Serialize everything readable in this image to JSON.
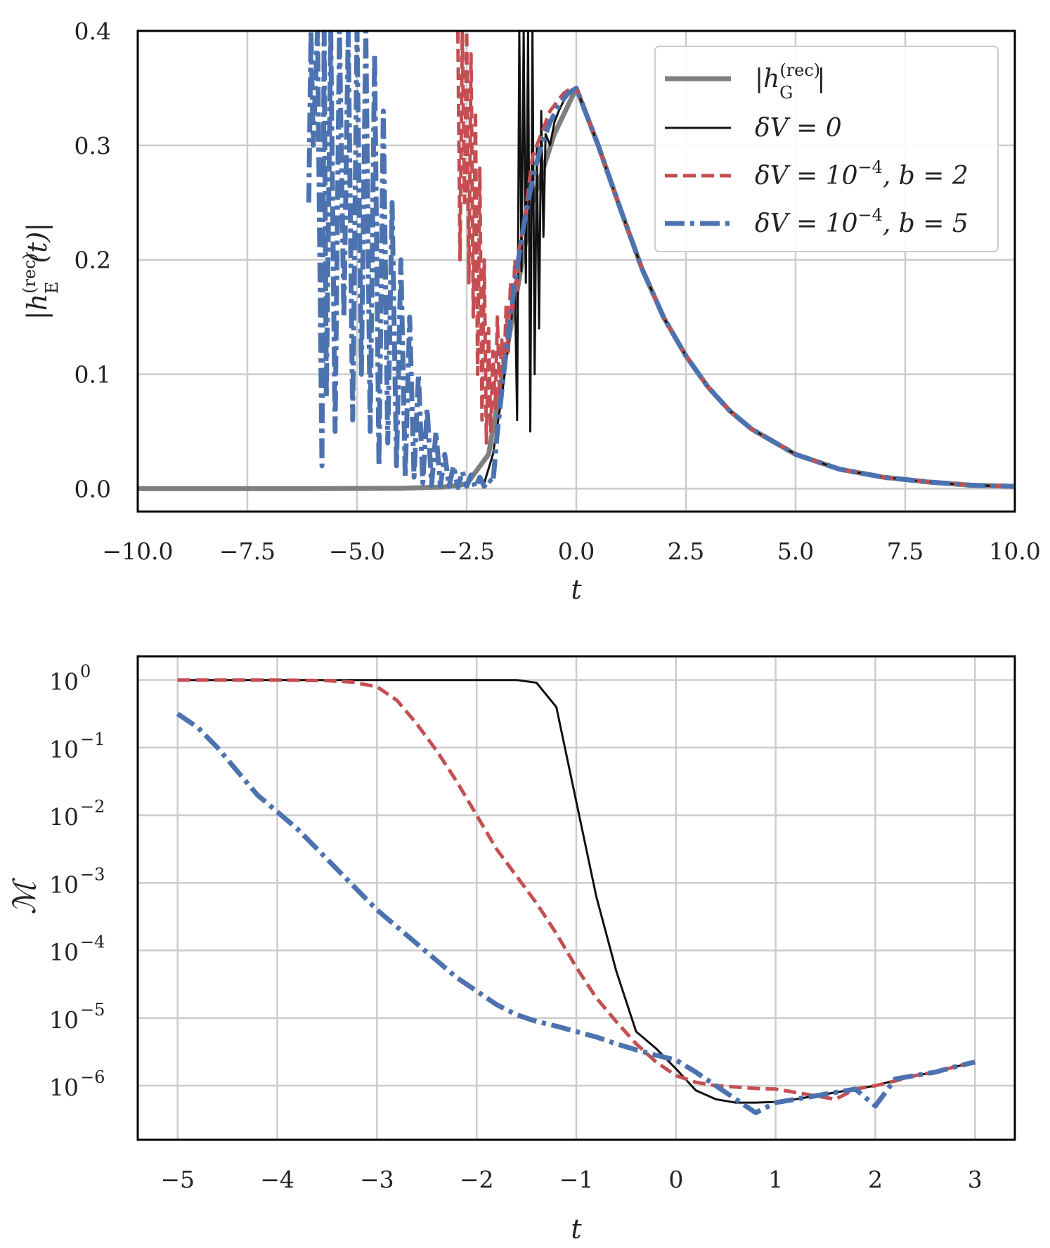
{
  "colors": {
    "gray": "#7f7f7f",
    "black": "#111111",
    "red": "#c44e52",
    "blue": "#4c72b0",
    "grid": "#cccccc",
    "frame": "#000000"
  },
  "chart_data": [
    {
      "type": "line",
      "xlabel": "t",
      "ylabel_parts": {
        "pre": "|h",
        "sup": "(rec)",
        "sub": "E",
        "post": "(t)|"
      },
      "xlim": [
        -10,
        10
      ],
      "ylim": [
        -0.02,
        0.4
      ],
      "xticks": [
        -10,
        -7.5,
        -5,
        -2.5,
        0,
        2.5,
        5,
        7.5,
        10
      ],
      "xtick_labels": [
        "−10.0",
        "−7.5",
        "−5.0",
        "−2.5",
        "0.0",
        "2.5",
        "5.0",
        "7.5",
        "10.0"
      ],
      "yticks": [
        0,
        0.1,
        0.2,
        0.3,
        0.4
      ],
      "ytick_labels": [
        "0.0",
        "0.1",
        "0.2",
        "0.3",
        "0.4"
      ],
      "legend": {
        "position": "top-right",
        "entries": [
          {
            "pre": "|h",
            "sup": "(rec)",
            "sub": "G",
            "post": "|",
            "style": "gray"
          },
          {
            "text": "δV = 0",
            "style": "black"
          },
          {
            "pre": "δV = 10",
            "sup": "−4",
            "post": ", b = 2",
            "style": "red"
          },
          {
            "pre": "δV = 10",
            "sup": "−4",
            "post": ", b = 5",
            "style": "blue"
          }
        ]
      },
      "series": [
        {
          "name": "|h_G^(rec)|",
          "style": "gray",
          "x": [
            -10,
            -8,
            -6,
            -4,
            -3,
            -2.5,
            -2,
            -1.5,
            -1,
            -0.5,
            0,
            0.5,
            1,
            1.5,
            2,
            2.5,
            3,
            3.5,
            4,
            5,
            6,
            7,
            8,
            9,
            10
          ],
          "y": [
            0,
            0,
            0,
            0.0003,
            0.0015,
            0.004,
            0.03,
            0.14,
            0.25,
            0.31,
            0.35,
            0.3,
            0.245,
            0.192,
            0.149,
            0.116,
            0.089,
            0.068,
            0.052,
            0.03,
            0.017,
            0.01,
            0.006,
            0.003,
            0.002
          ]
        },
        {
          "name": "δV = 0",
          "style": "black",
          "x": [
            -2.1,
            -1.9,
            -1.7,
            -1.5,
            -1.4,
            -1.35,
            -1.3,
            -1.25,
            -1.2,
            -1.15,
            -1.1,
            -1.05,
            -1.0,
            -0.95,
            -0.9,
            -0.85,
            -0.8,
            -0.75,
            -0.7,
            -0.6,
            -0.5,
            -0.4,
            -0.3,
            -0.2,
            -0.1,
            0,
            0.5,
            1,
            1.5,
            2,
            2.5,
            3,
            3.5,
            4,
            5,
            6,
            7,
            8,
            9,
            10
          ],
          "y": [
            0.005,
            0.03,
            0.08,
            0.14,
            0.18,
            0.06,
            0.4,
            0.19,
            0.4,
            0.18,
            0.4,
            0.05,
            0.4,
            0.1,
            0.3,
            0.14,
            0.33,
            0.22,
            0.31,
            0.3,
            0.32,
            0.33,
            0.338,
            0.345,
            0.349,
            0.35,
            0.3,
            0.245,
            0.192,
            0.149,
            0.116,
            0.089,
            0.068,
            0.052,
            0.03,
            0.017,
            0.01,
            0.006,
            0.003,
            0.002
          ]
        },
        {
          "name": "δV = 10^−4, b = 2",
          "style": "red",
          "x": [
            -2.7,
            -2.65,
            -2.6,
            -2.55,
            -2.5,
            -2.45,
            -2.4,
            -2.35,
            -2.3,
            -2.25,
            -2.2,
            -2.15,
            -2.1,
            -2.05,
            -2.0,
            -1.95,
            -1.9,
            -1.85,
            -1.8,
            -1.75,
            -1.7,
            -1.65,
            -1.6,
            -1.55,
            -1.5,
            -1.45,
            -1.4,
            -1.35,
            -1.3,
            -1.2,
            -1.1,
            -1.0,
            -0.9,
            -0.8,
            -0.7,
            -0.6,
            -0.5,
            -0.4,
            -0.3,
            -0.2,
            -0.1,
            0,
            0.5,
            1,
            1.5,
            2,
            2.5,
            3,
            3.5,
            4,
            5,
            6,
            7,
            8,
            9,
            10
          ],
          "y": [
            0.4,
            0.2,
            0.4,
            0.25,
            0.4,
            0.18,
            0.38,
            0.15,
            0.33,
            0.1,
            0.28,
            0.06,
            0.2,
            0.04,
            0.14,
            0.05,
            0.12,
            0.07,
            0.15,
            0.08,
            0.13,
            0.1,
            0.16,
            0.12,
            0.18,
            0.15,
            0.2,
            0.17,
            0.21,
            0.23,
            0.26,
            0.29,
            0.3,
            0.31,
            0.32,
            0.33,
            0.335,
            0.34,
            0.345,
            0.348,
            0.349,
            0.35,
            0.3,
            0.245,
            0.192,
            0.149,
            0.116,
            0.089,
            0.068,
            0.052,
            0.03,
            0.017,
            0.01,
            0.006,
            0.003,
            0.002
          ]
        },
        {
          "name": "δV = 10^−4, b = 5",
          "style": "blue",
          "x": [
            -6.1,
            -6.05,
            -6.0,
            -5.9,
            -5.8,
            -5.75,
            -5.7,
            -5.6,
            -5.5,
            -5.4,
            -5.3,
            -5.2,
            -5.1,
            -5.0,
            -4.9,
            -4.8,
            -4.7,
            -4.6,
            -4.5,
            -4.4,
            -4.3,
            -4.2,
            -4.1,
            -4.0,
            -3.9,
            -3.8,
            -3.7,
            -3.6,
            -3.5,
            -3.4,
            -3.3,
            -3.2,
            -3.1,
            -3.0,
            -2.9,
            -2.8,
            -2.7,
            -2.6,
            -2.5,
            -2.4,
            -2.3,
            -2.2,
            -2.1,
            -2.0,
            -1.9,
            -1.8,
            -1.6,
            -1.4,
            -1.2,
            -1.0,
            -0.8,
            -0.6,
            -0.4,
            -0.2,
            0,
            0.5,
            1,
            1.5,
            2,
            2.5,
            3,
            3.5,
            4,
            5,
            6,
            7,
            8,
            9,
            10
          ],
          "y": [
            0.25,
            0.4,
            0.3,
            0.4,
            0.02,
            0.4,
            0.08,
            0.4,
            0.05,
            0.4,
            0.15,
            0.4,
            0.06,
            0.4,
            0.1,
            0.4,
            0.05,
            0.38,
            0.02,
            0.33,
            0.04,
            0.25,
            0.02,
            0.2,
            0.01,
            0.15,
            0.01,
            0.1,
            0.005,
            0.07,
            0.003,
            0.05,
            0.002,
            0.03,
            0.002,
            0.02,
            0.001,
            0.015,
            0.002,
            0.012,
            0.001,
            0.01,
            0.002,
            0.008,
            0.005,
            0.05,
            0.12,
            0.18,
            0.23,
            0.27,
            0.3,
            0.32,
            0.335,
            0.345,
            0.35,
            0.3,
            0.245,
            0.192,
            0.149,
            0.116,
            0.089,
            0.068,
            0.052,
            0.03,
            0.017,
            0.01,
            0.006,
            0.003,
            0.002
          ]
        }
      ]
    },
    {
      "type": "line",
      "scale": "log-y",
      "xlabel": "t",
      "ylabel": "ℳ",
      "xlim": [
        -5.4,
        3.4
      ],
      "ylim_exp": [
        -6.8,
        0.35
      ],
      "xticks": [
        -5,
        -4,
        -3,
        -2,
        -1,
        0,
        1,
        2,
        3
      ],
      "xtick_labels": [
        "−5",
        "−4",
        "−3",
        "−2",
        "−1",
        "0",
        "1",
        "2",
        "3"
      ],
      "ytick_exponents": [
        0,
        -1,
        -2,
        -3,
        -4,
        -5,
        -6
      ],
      "ytick_base": "10",
      "ytick_sup_labels": [
        "0",
        "−1",
        "−2",
        "−3",
        "−4",
        "−5",
        "−6"
      ],
      "series": [
        {
          "name": "δV = 0",
          "style": "black",
          "x": [
            -5,
            -4.5,
            -4,
            -3.5,
            -3,
            -2.5,
            -2,
            -1.6,
            -1.4,
            -1.2,
            -1.0,
            -0.8,
            -0.6,
            -0.4,
            -0.2,
            0,
            0.2,
            0.4,
            0.6,
            0.8,
            1.0,
            1.2,
            1.4,
            1.6,
            1.8,
            2.0,
            2.2,
            2.4,
            2.6,
            2.8,
            3.0
          ],
          "log10": [
            0,
            0,
            0,
            0,
            0,
            0,
            0,
            0,
            -0.04,
            -0.4,
            -1.8,
            -3.2,
            -4.3,
            -5.2,
            -5.45,
            -5.75,
            -6.07,
            -6.2,
            -6.25,
            -6.25,
            -6.24,
            -6.2,
            -6.15,
            -6.1,
            -6.05,
            -6.0,
            -5.92,
            -5.85,
            -5.8,
            -5.72,
            -5.65
          ]
        },
        {
          "name": "δV = 10^−4, b = 2",
          "style": "red",
          "x": [
            -5,
            -4.5,
            -4,
            -3.5,
            -3.25,
            -3.0,
            -2.8,
            -2.6,
            -2.4,
            -2.2,
            -2.0,
            -1.8,
            -1.6,
            -1.4,
            -1.2,
            -1.0,
            -0.8,
            -0.6,
            -0.4,
            -0.2,
            0,
            0.2,
            0.4,
            0.6,
            0.8,
            1.0,
            1.2,
            1.4,
            1.6,
            1.8,
            2.0,
            2.2,
            2.4,
            2.6,
            2.8,
            3.0
          ],
          "log10": [
            0,
            0,
            0,
            -0.01,
            -0.03,
            -0.1,
            -0.3,
            -0.65,
            -1.05,
            -1.5,
            -2.0,
            -2.5,
            -2.9,
            -3.3,
            -3.75,
            -4.25,
            -4.7,
            -5.05,
            -5.38,
            -5.65,
            -5.85,
            -5.95,
            -6.0,
            -6.02,
            -6.04,
            -6.05,
            -6.1,
            -6.15,
            -6.2,
            -6.05,
            -6.0,
            -5.93,
            -5.85,
            -5.8,
            -5.72,
            -5.65
          ]
        },
        {
          "name": "δV = 10^−4, b = 5",
          "style": "blue",
          "x": [
            -5,
            -4.8,
            -4.6,
            -4.4,
            -4.2,
            -4.0,
            -3.8,
            -3.6,
            -3.4,
            -3.2,
            -3.0,
            -2.8,
            -2.6,
            -2.4,
            -2.2,
            -2.0,
            -1.8,
            -1.6,
            -1.4,
            -1.2,
            -1.0,
            -0.8,
            -0.6,
            -0.4,
            -0.2,
            0,
            0.2,
            0.4,
            0.6,
            0.8,
            1.0,
            1.2,
            1.4,
            1.6,
            1.8,
            2.0,
            2.2,
            2.4,
            2.6,
            2.8,
            3.0
          ],
          "log10": [
            -0.5,
            -0.7,
            -1.0,
            -1.35,
            -1.7,
            -1.95,
            -2.2,
            -2.5,
            -2.8,
            -3.1,
            -3.4,
            -3.65,
            -3.9,
            -4.15,
            -4.4,
            -4.6,
            -4.8,
            -4.95,
            -5.05,
            -5.12,
            -5.2,
            -5.28,
            -5.38,
            -5.47,
            -5.55,
            -5.62,
            -5.8,
            -6.0,
            -6.2,
            -6.4,
            -6.25,
            -6.2,
            -6.15,
            -6.1,
            -6.05,
            -6.3,
            -5.9,
            -5.85,
            -5.8,
            -5.72,
            -5.65
          ]
        }
      ]
    }
  ]
}
